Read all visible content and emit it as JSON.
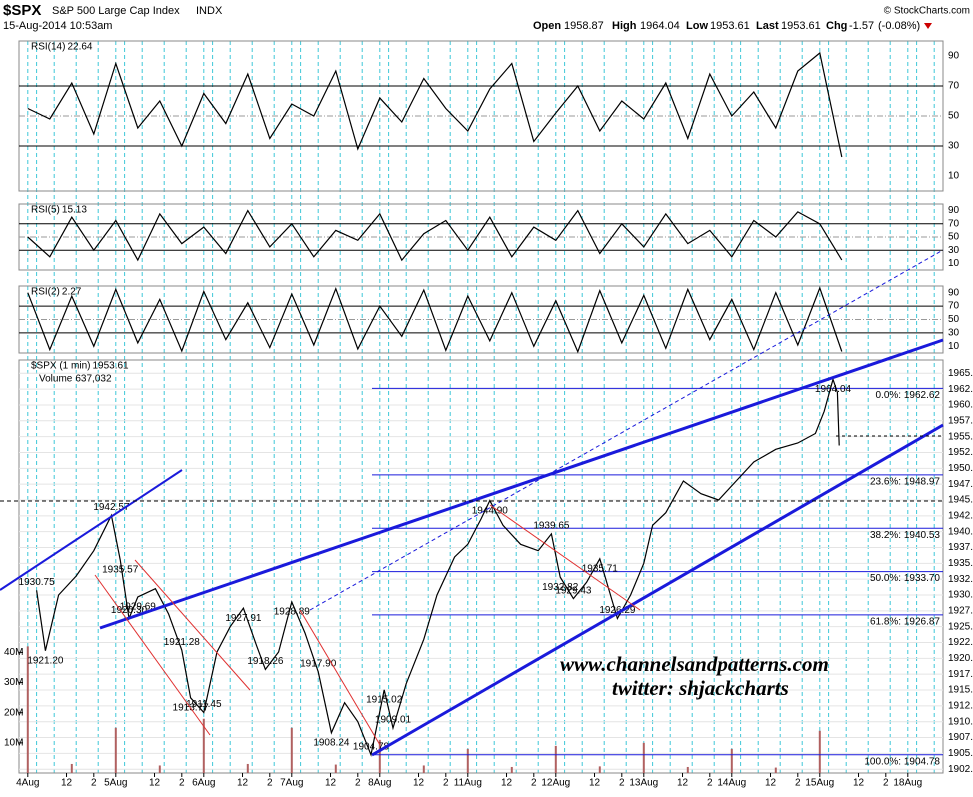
{
  "header": {
    "symbol": "$SPX",
    "name": "S&P 500 Large Cap Index",
    "exchange": "INDX",
    "date": "15-Aug-2014 10:53am",
    "open_label": "Open",
    "open": 1958.87,
    "high_label": "High",
    "high": 1964.04,
    "low_label": "Low",
    "low": 1953.61,
    "last_label": "Last",
    "last": 1953.61,
    "chg_label": "Chg",
    "chg": -1.57,
    "chg_pct": "(-0.08%)",
    "credit": "© StockCharts.com"
  },
  "watermark": [
    "www.channelsandpatterns.com",
    "twitter: shjackcharts"
  ],
  "chart_data": [
    {
      "type": "line",
      "ylim": [
        0,
        100
      ],
      "yticks": [
        10,
        30,
        50,
        70,
        90
      ],
      "x": [
        0,
        0.25,
        0.5,
        0.75,
        1,
        1.25,
        1.5,
        1.75,
        2,
        2.25,
        2.5,
        2.75,
        3,
        3.25,
        3.5,
        3.75,
        4,
        4.25,
        4.5,
        4.75,
        5,
        5.25,
        5.5,
        5.75,
        6,
        6.25,
        6.5,
        6.75,
        7,
        7.25,
        7.5,
        7.75,
        8,
        8.25,
        8.5,
        8.75,
        9,
        9.25
      ],
      "series": [
        {
          "name": "RSI(14)",
          "color": "#000000",
          "values": [
            55,
            48,
            72,
            38,
            85,
            42,
            60,
            30,
            65,
            45,
            78,
            35,
            58,
            50,
            80,
            28,
            62,
            46,
            75,
            55,
            40,
            68,
            85,
            33,
            52,
            70,
            40,
            60,
            48,
            72,
            35,
            78,
            50,
            66,
            42,
            80,
            92,
            22.64
          ]
        }
      ]
    },
    {
      "type": "line",
      "ylim": [
        0,
        100
      ],
      "yticks": [
        10,
        30,
        50,
        70,
        90
      ],
      "x": [
        0,
        0.25,
        0.5,
        0.75,
        1,
        1.25,
        1.5,
        1.75,
        2,
        2.25,
        2.5,
        2.75,
        3,
        3.25,
        3.5,
        3.75,
        4,
        4.25,
        4.5,
        4.75,
        5,
        5.25,
        5.5,
        5.75,
        6,
        6.25,
        6.5,
        6.75,
        7,
        7.25,
        7.5,
        7.75,
        8,
        8.25,
        8.5,
        8.75,
        9,
        9.25
      ],
      "series": [
        {
          "name": "RSI(5)",
          "color": "#000000",
          "values": [
            50,
            20,
            80,
            30,
            75,
            15,
            85,
            40,
            65,
            25,
            90,
            35,
            70,
            20,
            60,
            45,
            85,
            15,
            55,
            75,
            30,
            80,
            20,
            65,
            45,
            90,
            25,
            70,
            35,
            85,
            40,
            60,
            20,
            75,
            50,
            88,
            70,
            15.13
          ]
        }
      ]
    },
    {
      "type": "line",
      "ylim": [
        0,
        100
      ],
      "yticks": [
        10,
        30,
        50,
        70,
        90
      ],
      "x": [
        0,
        0.25,
        0.5,
        0.75,
        1,
        1.25,
        1.5,
        1.75,
        2,
        2.25,
        2.5,
        2.75,
        3,
        3.25,
        3.5,
        3.75,
        4,
        4.25,
        4.5,
        4.75,
        5,
        5.25,
        5.5,
        5.75,
        6,
        6.25,
        6.5,
        6.75,
        7,
        7.25,
        7.5,
        7.75,
        8,
        8.25,
        8.5,
        8.75,
        9,
        9.25
      ],
      "series": [
        {
          "name": "RSI(2)",
          "color": "#000000",
          "values": [
            90,
            5,
            85,
            10,
            95,
            15,
            80,
            3,
            92,
            20,
            75,
            8,
            88,
            12,
            96,
            6,
            70,
            25,
            94,
            4,
            85,
            18,
            90,
            10,
            78,
            2,
            93,
            15,
            86,
            7,
            95,
            20,
            80,
            5,
            90,
            12,
            97,
            2.27
          ]
        }
      ]
    },
    {
      "type": "line",
      "ylim": [
        1901.9,
        1967.1
      ],
      "y2lim": [
        0,
        137000000
      ],
      "yticks": [
        1902.5,
        {
          "value": 1905,
          "label": "1905.0"
        },
        1907.5,
        {
          "value": 1910,
          "label": "1910.0"
        },
        1912.5,
        {
          "value": 1915,
          "label": "1915.0"
        },
        1917.5,
        {
          "value": 1920,
          "label": "1920.0"
        },
        1922.5,
        {
          "value": 1925,
          "label": "1925.0"
        },
        1927.5,
        {
          "value": 1930,
          "label": "1930.0"
        },
        1932.5,
        {
          "value": 1935,
          "label": "1935.0"
        },
        1937.5,
        {
          "value": 1940,
          "label": "1940.0"
        },
        1942.5,
        {
          "value": 1945,
          "label": "1945.0"
        },
        1947.5,
        {
          "value": 1950,
          "label": "1950.0"
        },
        1952.5,
        {
          "value": 1955,
          "label": "1955.0"
        },
        1957.5,
        {
          "value": 1960,
          "label": "1960.0"
        },
        1962.5,
        {
          "value": 1965,
          "label": "1965.0"
        }
      ],
      "y2ticks": [
        {
          "value": 10000000,
          "label": "10M"
        },
        {
          "value": 20000000,
          "label": "20M"
        },
        {
          "value": 30000000,
          "label": "30M"
        },
        {
          "value": 40000000,
          "label": "40M"
        }
      ],
      "xlim": [
        -0.1,
        10.4
      ],
      "xticks": [
        {
          "value": 0,
          "label": "4Aug"
        },
        {
          "value": 0.44,
          "label": "12"
        },
        {
          "value": 0.75,
          "label": "2"
        },
        {
          "value": 1,
          "label": "5Aug"
        },
        {
          "value": 1.44,
          "label": "12"
        },
        {
          "value": 1.75,
          "label": "2"
        },
        {
          "value": 2,
          "label": "6Aug"
        },
        {
          "value": 2.44,
          "label": "12"
        },
        {
          "value": 2.75,
          "label": "2"
        },
        {
          "value": 3,
          "label": "7Aug"
        },
        {
          "value": 3.44,
          "label": "12"
        },
        {
          "value": 3.75,
          "label": "2"
        },
        {
          "value": 4,
          "label": "8Aug"
        },
        {
          "value": 4.44,
          "label": "12"
        },
        {
          "value": 4.75,
          "label": "2"
        },
        {
          "value": 5,
          "label": "11Aug"
        },
        {
          "value": 5.44,
          "label": "12"
        },
        {
          "value": 5.75,
          "label": "2"
        },
        {
          "value": 6,
          "label": "12Aug"
        },
        {
          "value": 6.44,
          "label": "12"
        },
        {
          "value": 6.75,
          "label": "2"
        },
        {
          "value": 7,
          "label": "13Aug"
        },
        {
          "value": 7.44,
          "label": "12"
        },
        {
          "value": 7.75,
          "label": "2"
        },
        {
          "value": 8,
          "label": "14Aug"
        },
        {
          "value": 8.44,
          "label": "12"
        },
        {
          "value": 8.75,
          "label": "2"
        },
        {
          "value": 9,
          "label": "15Aug"
        },
        {
          "value": 9.44,
          "label": "12"
        },
        {
          "value": 9.75,
          "label": "2"
        },
        {
          "value": 10,
          "label": "18Aug"
        }
      ],
      "series": [
        {
          "name": "$SPX (1 min)",
          "color": "#000000",
          "x": [
            0.1,
            0.2,
            0.35,
            0.55,
            0.75,
            0.95,
            1.05,
            1.15,
            1.25,
            1.45,
            1.6,
            1.75,
            1.85,
            2.0,
            2.15,
            2.3,
            2.45,
            2.6,
            2.7,
            2.85,
            3.0,
            3.15,
            3.3,
            3.45,
            3.6,
            3.75,
            3.9,
            4.05,
            4.15,
            4.3,
            4.5,
            4.65,
            4.85,
            5.0,
            5.15,
            5.25,
            5.4,
            5.6,
            5.8,
            5.95,
            6.05,
            6.2,
            6.35,
            6.5,
            6.7,
            6.85,
            7.0,
            7.1,
            7.25,
            7.45,
            7.65,
            7.85,
            8.05,
            8.25,
            8.5,
            8.75,
            8.95,
            9.05,
            9.15,
            9.2,
            9.22
          ],
          "values": [
            1930.75,
            1921.2,
            1930,
            1933,
            1937,
            1942.57,
            1935.57,
            1926.3,
            1929.69,
            1931,
            1927,
            1921.28,
            1913.77,
            1911.45,
            1921,
            1925,
            1927.91,
            1922,
            1918.26,
            1921,
            1928.89,
            1924,
            1917.9,
            1908.24,
            1913,
            1910,
            1904.78,
            1915.02,
            1909.01,
            1916,
            1923,
            1930,
            1936,
            1938,
            1942,
            1944.9,
            1941,
            1938,
            1937,
            1939.65,
            1932.82,
            1929.43,
            1932,
            1935.71,
            1926.29,
            1930,
            1935,
            1941,
            1943,
            1948,
            1946,
            1945,
            1948,
            1951,
            1953,
            1954,
            1955.5,
            1959,
            1964.04,
            1962,
            1953.61
          ]
        },
        {
          "name": "Volume",
          "color": "#b06060",
          "axis": "y2",
          "last": 637032,
          "last_label": "637,032",
          "x": [
            0,
            0.5,
            1,
            1.5,
            2,
            2.5,
            3,
            3.5,
            4,
            4.5,
            5,
            5.5,
            6,
            6.5,
            7,
            7.5,
            8,
            8.5,
            9
          ],
          "values": [
            42000000,
            3000000,
            15000000,
            2500000,
            18000000,
            3000000,
            15000000,
            2800000,
            11000000,
            2500000,
            8000000,
            2000000,
            9000000,
            2200000,
            10000000,
            2000000,
            8000000,
            1800000,
            14000000
          ]
        }
      ],
      "annotations": [
        {
          "label": "1930.75",
          "x": 0.1,
          "y": 1930.75
        },
        {
          "label": "1921.20",
          "x": 0.2,
          "y": 1921.2
        },
        {
          "label": "1942.57",
          "x": 0.95,
          "y": 1942.57
        },
        {
          "label": "1935.57",
          "x": 1.05,
          "y": 1935.57
        },
        {
          "label": "1926.30",
          "x": 1.15,
          "y": 1926.3
        },
        {
          "label": "1929.69",
          "x": 1.25,
          "y": 1929.69
        },
        {
          "label": "1921.28",
          "x": 1.75,
          "y": 1921.28
        },
        {
          "label": "1913.77",
          "x": 1.85,
          "y": 1913.77
        },
        {
          "label": "1911.45",
          "x": 2.0,
          "y": 1911.45
        },
        {
          "label": "1927.91",
          "x": 2.45,
          "y": 1927.91
        },
        {
          "label": "1918.26",
          "x": 2.7,
          "y": 1918.26
        },
        {
          "label": "1928.89",
          "x": 3.0,
          "y": 1928.89
        },
        {
          "label": "1917.90",
          "x": 3.3,
          "y": 1917.9
        },
        {
          "label": "1908.24",
          "x": 3.45,
          "y": 1908.24
        },
        {
          "label": "1904.78",
          "x": 3.9,
          "y": 1904.78
        },
        {
          "label": "1915.02",
          "x": 4.05,
          "y": 1915.02
        },
        {
          "label": "1909.01",
          "x": 4.15,
          "y": 1909.01
        },
        {
          "label": "1944.90",
          "x": 5.25,
          "y": 1944.9
        },
        {
          "label": "1939.65",
          "x": 5.95,
          "y": 1939.65
        },
        {
          "label": "1932.82",
          "x": 6.05,
          "y": 1932.82
        },
        {
          "label": "1929.43",
          "x": 6.2,
          "y": 1929.43
        },
        {
          "label": "1935.71",
          "x": 6.5,
          "y": 1935.71
        },
        {
          "label": "1926.29",
          "x": 6.7,
          "y": 1926.29
        },
        {
          "label": "1964.04",
          "x": 9.15,
          "y": 1964.04
        }
      ],
      "fib_levels": [
        {
          "label": "0.0%: 1962.62",
          "value": 1962.62
        },
        {
          "label": "23.6%: 1948.97",
          "value": 1948.97
        },
        {
          "label": "38.2%: 1940.53",
          "value": 1940.53
        },
        {
          "label": "50.0%: 1933.70",
          "value": 1933.7
        },
        {
          "label": "61.8%: 1926.87",
          "value": 1926.87
        },
        {
          "label": "100.0%: 1904.78",
          "value": 1904.78
        }
      ]
    }
  ]
}
